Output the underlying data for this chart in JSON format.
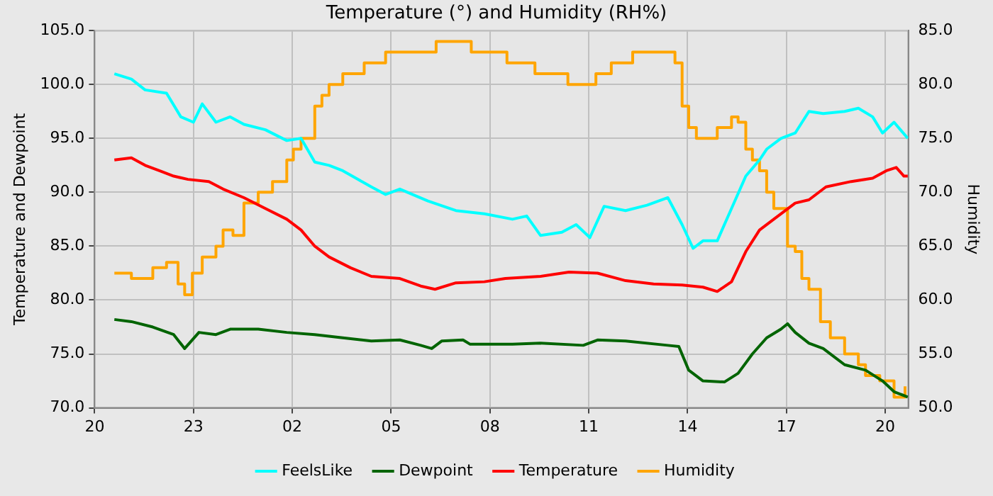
{
  "chart_data": {
    "type": "line",
    "title": "Temperature (°) and Humidity (RH%)",
    "ylabel": "Temperature and Dewpoint",
    "y2label": "Humidity",
    "xlim": [
      "--01-01T20:00",
      "--01-02T20:42"
    ],
    "xticks": [
      {
        "value": "--01-01T20:00",
        "label": "20"
      },
      {
        "value": "--01-01T23:00",
        "label": "23"
      },
      {
        "value": "--01-02T02:00",
        "label": "02"
      },
      {
        "value": "--01-02T05:00",
        "label": "05"
      },
      {
        "value": "--01-02T08:00",
        "label": "08"
      },
      {
        "value": "--01-02T11:00",
        "label": "11"
      },
      {
        "value": "--01-02T14:00",
        "label": "14"
      },
      {
        "value": "--01-02T17:00",
        "label": "17"
      },
      {
        "value": "--01-02T20:00",
        "label": "20"
      }
    ],
    "ylim": [
      70,
      105
    ],
    "yticks": [
      {
        "value": 70,
        "label": "70.0"
      },
      {
        "value": 75,
        "label": "75.0"
      },
      {
        "value": 80,
        "label": "80.0"
      },
      {
        "value": 85,
        "label": "85.0"
      },
      {
        "value": 90,
        "label": "90.0"
      },
      {
        "value": 95,
        "label": "95.0"
      },
      {
        "value": 100,
        "label": "100.0"
      },
      {
        "value": 105,
        "label": "105.0"
      }
    ],
    "y2lim": [
      50,
      85
    ],
    "y2ticks": [
      {
        "value": 50,
        "label": "50.0"
      },
      {
        "value": 55,
        "label": "55.0"
      },
      {
        "value": 60,
        "label": "60.0"
      },
      {
        "value": 65,
        "label": "65.0"
      },
      {
        "value": 70,
        "label": "70.0"
      },
      {
        "value": 75,
        "label": "75.0"
      },
      {
        "value": 80,
        "label": "80.0"
      },
      {
        "value": 85,
        "label": "85.0"
      }
    ],
    "grid": true,
    "legend": "bottom",
    "marker": "none",
    "series": [
      {
        "name": "FeelsLike",
        "color": "#00ffff",
        "x": [
          "--01-01T20:36",
          "--01-01T21:07",
          "--01-01T21:32",
          "--01-01T22:11",
          "--01-01T22:37",
          "--01-01T23:00",
          "--01-01T23:16",
          "--01-01T23:41",
          "--01-02T00:07",
          "--01-02T00:32",
          "--01-02T01:11",
          "--01-02T01:50",
          "--01-02T02:16",
          "--01-02T02:41",
          "--01-02T03:07",
          "--01-02T03:32",
          "--01-02T04:24",
          "--01-02T04:50",
          "--01-02T05:16",
          "--01-02T06:07",
          "--01-02T06:58",
          "--01-02T07:50",
          "--01-02T08:41",
          "--01-02T09:07",
          "--01-02T09:32",
          "--01-02T10:11",
          "--01-02T10:37",
          "--01-02T11:02",
          "--01-02T11:28",
          "--01-02T12:07",
          "--01-02T12:46",
          "--01-02T13:24",
          "--01-02T13:50",
          "--01-02T14:10",
          "--01-02T14:28",
          "--01-02T14:54",
          "--01-02T15:20",
          "--01-02T15:46",
          "--01-02T16:11",
          "--01-02T16:24",
          "--01-02T16:50",
          "--01-02T17:16",
          "--01-02T17:41",
          "--01-02T18:07",
          "--01-02T18:46",
          "--01-02T19:11",
          "--01-02T19:37",
          "--01-02T19:55",
          "--01-02T20:16",
          "--01-02T20:41"
        ],
        "values": [
          101,
          100.5,
          99.5,
          99.2,
          97,
          96.5,
          98.2,
          96.5,
          97,
          96.3,
          95.8,
          94.8,
          95,
          92.8,
          92.5,
          92,
          90.5,
          89.8,
          90.3,
          89.2,
          88.3,
          88,
          87.5,
          87.8,
          86,
          86.3,
          87,
          85.8,
          88.7,
          88.3,
          88.8,
          89.5,
          87,
          84.8,
          85.5,
          85.5,
          88.5,
          91.5,
          93,
          94,
          95,
          95.5,
          97.5,
          97.3,
          97.5,
          97.8,
          97,
          95.5,
          96.5,
          95
        ]
      },
      {
        "name": "Dewpoint",
        "color": "#006400",
        "x": [
          "--01-01T20:36",
          "--01-01T21:07",
          "--01-01T21:46",
          "--01-01T22:24",
          "--01-01T22:44",
          "--01-01T23:10",
          "--01-01T23:41",
          "--01-02T00:07",
          "--01-02T00:58",
          "--01-02T01:50",
          "--01-02T02:41",
          "--01-02T03:32",
          "--01-02T04:24",
          "--01-02T05:16",
          "--01-02T05:54",
          "--01-02T06:14",
          "--01-02T06:32",
          "--01-02T07:11",
          "--01-02T07:24",
          "--01-02T08:41",
          "--01-02T09:32",
          "--01-02T10:50",
          "--01-02T11:16",
          "--01-02T12:07",
          "--01-02T13:24",
          "--01-02T13:44",
          "--01-02T14:02",
          "--01-02T14:28",
          "--01-02T15:07",
          "--01-02T15:32",
          "--01-02T15:58",
          "--01-02T16:24",
          "--01-02T16:50",
          "--01-02T17:02",
          "--01-02T17:16",
          "--01-02T17:41",
          "--01-02T18:07",
          "--01-02T18:46",
          "--01-02T19:24",
          "--01-02T19:55",
          "--01-02T20:16",
          "--01-02T20:41"
        ],
        "values": [
          78.2,
          78,
          77.5,
          76.8,
          75.5,
          77,
          76.8,
          77.3,
          77.3,
          77,
          76.8,
          76.5,
          76.2,
          76.3,
          75.8,
          75.5,
          76.2,
          76.3,
          75.9,
          75.9,
          76,
          75.8,
          76.3,
          76.2,
          75.8,
          75.7,
          73.5,
          72.5,
          72.4,
          73.2,
          75,
          76.5,
          77.3,
          77.8,
          77,
          76,
          75.5,
          74,
          73.5,
          72.5,
          71.5,
          71
        ]
      },
      {
        "name": "Temperature",
        "color": "#ff0000",
        "x": [
          "--01-01T20:36",
          "--01-01T21:07",
          "--01-01T21:32",
          "--01-01T21:58",
          "--01-01T22:24",
          "--01-01T22:50",
          "--01-01T23:28",
          "--01-01T23:54",
          "--01-02T00:32",
          "--01-02T01:11",
          "--01-02T01:50",
          "--01-02T02:16",
          "--01-02T02:41",
          "--01-02T03:07",
          "--01-02T03:46",
          "--01-02T04:24",
          "--01-02T05:16",
          "--01-02T05:54",
          "--01-02T06:20",
          "--01-02T06:58",
          "--01-02T07:50",
          "--01-02T08:28",
          "--01-02T09:32",
          "--01-02T10:24",
          "--01-02T11:16",
          "--01-02T12:07",
          "--01-02T12:58",
          "--01-02T13:50",
          "--01-02T14:28",
          "--01-02T14:54",
          "--01-02T15:20",
          "--01-02T15:46",
          "--01-02T16:11",
          "--01-02T16:37",
          "--01-02T17:16",
          "--01-02T17:41",
          "--01-02T18:12",
          "--01-02T18:58",
          "--01-02T19:37",
          "--01-02T20:02",
          "--01-02T20:20",
          "--01-02T20:34",
          "--01-02T20:41"
        ],
        "values": [
          93,
          93.2,
          92.5,
          92,
          91.5,
          91.2,
          91,
          90.3,
          89.5,
          88.5,
          87.5,
          86.5,
          85,
          84,
          83,
          82.2,
          82,
          81.3,
          81,
          81.6,
          81.7,
          82,
          82.2,
          82.6,
          82.5,
          81.8,
          81.5,
          81.4,
          81.2,
          80.8,
          81.7,
          84.5,
          86.5,
          87.5,
          89,
          89.3,
          90.5,
          91,
          91.3,
          92,
          92.3,
          91.5,
          91.5
        ]
      },
      {
        "name": "Humidity",
        "color": "#ffa500",
        "type": "step",
        "axis": "y2",
        "x": [
          "--01-01T20:36",
          "--01-01T21:07",
          "--01-01T21:46",
          "--01-01T22:11",
          "--01-01T22:32",
          "--01-01T22:44",
          "--01-01T22:58",
          "--01-01T23:16",
          "--01-01T23:41",
          "--01-01T23:54",
          "--01-02T00:12",
          "--01-02T00:32",
          "--01-02T00:58",
          "--01-02T01:24",
          "--01-02T01:50",
          "--01-02T02:02",
          "--01-02T02:16",
          "--01-02T02:41",
          "--01-02T02:54",
          "--01-02T03:07",
          "--01-02T03:32",
          "--01-02T04:11",
          "--01-02T04:50",
          "--01-02T06:22",
          "--01-02T07:26",
          "--01-02T08:31",
          "--01-02T09:22",
          "--01-02T10:22",
          "--01-02T11:13",
          "--01-02T11:41",
          "--01-02T12:20",
          "--01-02T13:24",
          "--01-02T13:37",
          "--01-02T13:50",
          "--01-02T14:02",
          "--01-02T14:16",
          "--01-02T14:41",
          "--01-02T14:54",
          "--01-02T15:20",
          "--01-02T15:32",
          "--01-02T15:46",
          "--01-02T15:58",
          "--01-02T16:11",
          "--01-02T16:24",
          "--01-02T16:37",
          "--01-02T17:02",
          "--01-02T17:16",
          "--01-02T17:28",
          "--01-02T17:41",
          "--01-02T18:02",
          "--01-02T18:20",
          "--01-02T18:46",
          "--01-02T19:11",
          "--01-02T19:24",
          "--01-02T19:50",
          "--01-02T20:16",
          "--01-02T20:36"
        ],
        "values": [
          62.5,
          62,
          63,
          63.5,
          61.5,
          60.5,
          62.5,
          64,
          65,
          66.5,
          66,
          69,
          70,
          71,
          73,
          74,
          75,
          78,
          79,
          80,
          81,
          82,
          83,
          84,
          83,
          82,
          81,
          80,
          81,
          82,
          83,
          83,
          82,
          78,
          76,
          75,
          75,
          76,
          77,
          76.5,
          74,
          73,
          72,
          70,
          68.5,
          65,
          64.5,
          62,
          61,
          58,
          56.5,
          55,
          54,
          53,
          52.5,
          51,
          52
        ]
      }
    ]
  }
}
